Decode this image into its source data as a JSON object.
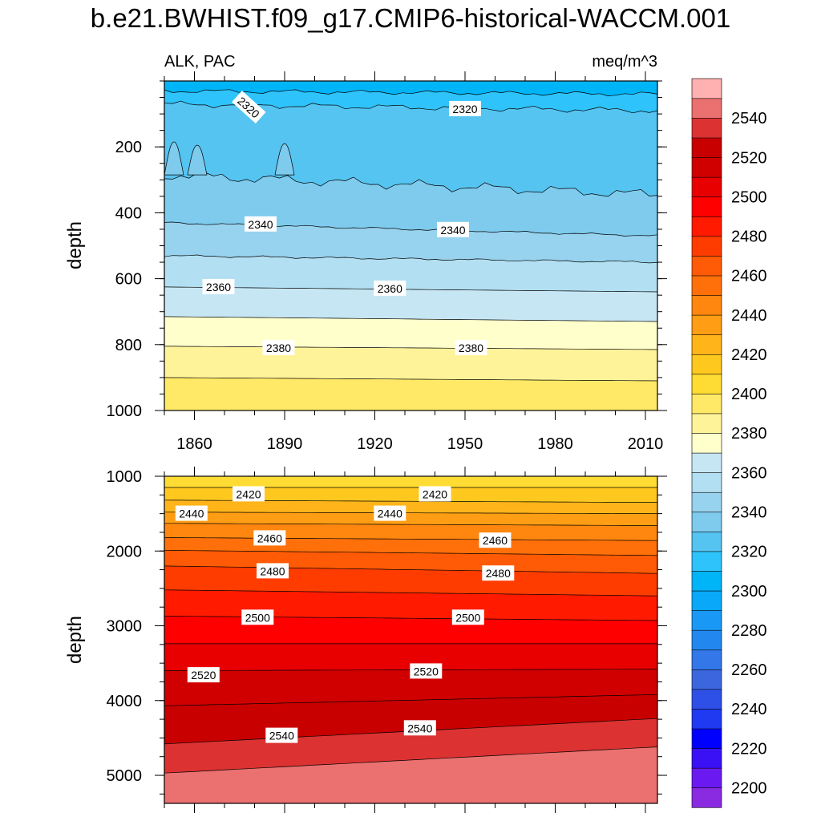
{
  "chart_data": {
    "type": "contour",
    "title": "b.e21.BWHIST.f09_g17.CMIP6-historical-WACCM.001",
    "colorbar": {
      "levels": [
        2200,
        2210,
        2220,
        2230,
        2240,
        2250,
        2260,
        2270,
        2280,
        2290,
        2300,
        2310,
        2320,
        2330,
        2340,
        2350,
        2360,
        2370,
        2380,
        2390,
        2400,
        2410,
        2420,
        2430,
        2440,
        2450,
        2460,
        2470,
        2480,
        2490,
        2500,
        2510,
        2520,
        2530,
        2540,
        2550
      ],
      "labels": [
        "2200",
        "2220",
        "2240",
        "2260",
        "2280",
        "2300",
        "2320",
        "2340",
        "2360",
        "2380",
        "2400",
        "2420",
        "2440",
        "2460",
        "2480",
        "2500",
        "2520",
        "2540"
      ],
      "colors": [
        "#8a2be2",
        "#6a1af0",
        "#3a10f5",
        "#0000ff",
        "#1f3af0",
        "#2e50e6",
        "#3c66dd",
        "#3377e8",
        "#2288f0",
        "#1a98f5",
        "#09a8f8",
        "#00b4f8",
        "#2fc3fb",
        "#55c4f1",
        "#7ecbee",
        "#97d2ee",
        "#b2dff1",
        "#c6e6f4",
        "#ffffcc",
        "#fff39a",
        "#ffe966",
        "#ffdc33",
        "#ffc81f",
        "#ffb51a",
        "#ff9e14",
        "#ff870f",
        "#ff700a",
        "#ff5a05",
        "#ff3c00",
        "#ff1a00",
        "#ff0000",
        "#e80000",
        "#d10000",
        "#c80000",
        "#dc3232",
        "#eb7070",
        "#ffb0b0"
      ]
    },
    "panels": [
      {
        "name": "upper-ocean",
        "left_label": "ALK, PAC",
        "right_label": "meq/m^3",
        "ylabel": "depth",
        "xlim": [
          1850,
          2014
        ],
        "ylim": [
          0,
          1000
        ],
        "y_reversed": true,
        "xticks": [
          1860,
          1890,
          1920,
          1950,
          1980,
          2010
        ],
        "xtick_labels": [
          "1860",
          "1890",
          "1920",
          "1950",
          "1980",
          "2010"
        ],
        "yticks": [
          200,
          400,
          600,
          800,
          1000
        ],
        "ytick_labels": [
          "200",
          "400",
          "600",
          "800",
          "1000"
        ],
        "contours": [
          {
            "level": 2310,
            "depth_start": 30,
            "depth_end": 40
          },
          {
            "level": 2320,
            "depth_start": 70,
            "depth_end": 90
          },
          {
            "level": 2330,
            "depth_start": 285,
            "depth_end": 345
          },
          {
            "level": 2340,
            "depth_start": 430,
            "depth_end": 470
          },
          {
            "level": 2350,
            "depth_start": 530,
            "depth_end": 550
          },
          {
            "level": 2360,
            "depth_start": 625,
            "depth_end": 640
          },
          {
            "level": 2370,
            "depth_start": 715,
            "depth_end": 730
          },
          {
            "level": 2380,
            "depth_start": 805,
            "depth_end": 815
          },
          {
            "level": 2390,
            "depth_start": 900,
            "depth_end": 910
          }
        ],
        "contour_labels": [
          {
            "text": "2320",
            "x": 1878,
            "depth": 80
          },
          {
            "text": "2320",
            "x": 1950,
            "depth": 85
          },
          {
            "text": "2340",
            "x": 1882,
            "depth": 435
          },
          {
            "text": "2340",
            "x": 1946,
            "depth": 452
          },
          {
            "text": "2360",
            "x": 1868,
            "depth": 625
          },
          {
            "text": "2360",
            "x": 1925,
            "depth": 630
          },
          {
            "text": "2380",
            "x": 1888,
            "depth": 810
          },
          {
            "text": "2380",
            "x": 1952,
            "depth": 810
          }
        ]
      },
      {
        "name": "deep-ocean",
        "ylabel": "depth",
        "xlim": [
          1850,
          2014
        ],
        "ylim": [
          1000,
          5375
        ],
        "y_reversed": true,
        "yticks": [
          1000,
          2000,
          3000,
          4000,
          5000
        ],
        "ytick_labels": [
          "1000",
          "2000",
          "3000",
          "4000",
          "5000"
        ],
        "contours": [
          {
            "level": 2410,
            "depth_start": 1150,
            "depth_end": 1150
          },
          {
            "level": 2420,
            "depth_start": 1320,
            "depth_end": 1350
          },
          {
            "level": 2430,
            "depth_start": 1480,
            "depth_end": 1500
          },
          {
            "level": 2440,
            "depth_start": 1630,
            "depth_end": 1660
          },
          {
            "level": 2450,
            "depth_start": 1820,
            "depth_end": 1860
          },
          {
            "level": 2460,
            "depth_start": 1990,
            "depth_end": 2060
          },
          {
            "level": 2470,
            "depth_start": 2200,
            "depth_end": 2300
          },
          {
            "level": 2480,
            "depth_start": 2520,
            "depth_end": 2600
          },
          {
            "level": 2490,
            "depth_start": 2870,
            "depth_end": 2930
          },
          {
            "level": 2500,
            "depth_start": 3240,
            "depth_end": 3240
          },
          {
            "level": 2510,
            "depth_start": 3600,
            "depth_end": 3580
          },
          {
            "level": 2520,
            "depth_start": 4070,
            "depth_end": 3920
          },
          {
            "level": 2530,
            "depth_start": 4580,
            "depth_end": 4240
          },
          {
            "level": 2540,
            "depth_start": 4970,
            "depth_end": 4620
          }
        ],
        "contour_labels": [
          {
            "text": "2420",
            "x": 1878,
            "depth": 1240
          },
          {
            "text": "2420",
            "x": 1940,
            "depth": 1240
          },
          {
            "text": "2440",
            "x": 1859,
            "depth": 1500
          },
          {
            "text": "2440",
            "x": 1925,
            "depth": 1500
          },
          {
            "text": "2460",
            "x": 1885,
            "depth": 1830
          },
          {
            "text": "2460",
            "x": 1960,
            "depth": 1860
          },
          {
            "text": "2480",
            "x": 1886,
            "depth": 2270
          },
          {
            "text": "2480",
            "x": 1961,
            "depth": 2300
          },
          {
            "text": "2500",
            "x": 1881,
            "depth": 2890
          },
          {
            "text": "2500",
            "x": 1951,
            "depth": 2890
          },
          {
            "text": "2520",
            "x": 1863,
            "depth": 3660
          },
          {
            "text": "2520",
            "x": 1937,
            "depth": 3610
          },
          {
            "text": "2540",
            "x": 1889,
            "depth": 4470
          },
          {
            "text": "2540",
            "x": 1935,
            "depth": 4370
          }
        ]
      }
    ]
  }
}
